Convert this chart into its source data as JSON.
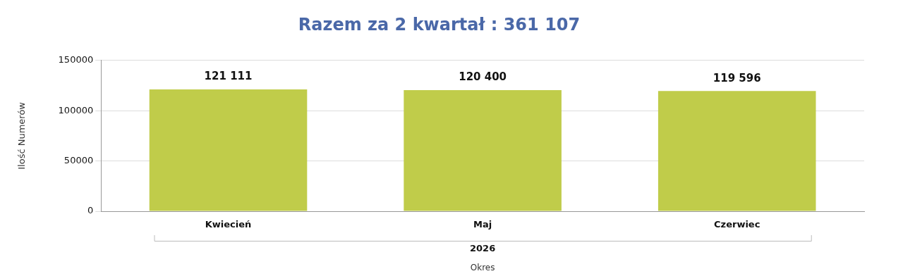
{
  "chart_data": {
    "type": "bar",
    "title": "Razem za 2 kwartał : 361 107",
    "ylabel": "Ilość Numerów",
    "xlabel": "Okres",
    "categories": [
      "Kwiecień",
      "Maj",
      "Czerwiec"
    ],
    "values": [
      121111,
      120400,
      119596
    ],
    "value_labels": [
      "121 111",
      "120 400",
      "119 596"
    ],
    "color": "#c0cc4a",
    "ylim": [
      0,
      150000
    ],
    "yticks": [
      0,
      50000,
      100000,
      150000
    ],
    "grid": "y",
    "legend": false,
    "annotations": [
      "2026"
    ]
  }
}
